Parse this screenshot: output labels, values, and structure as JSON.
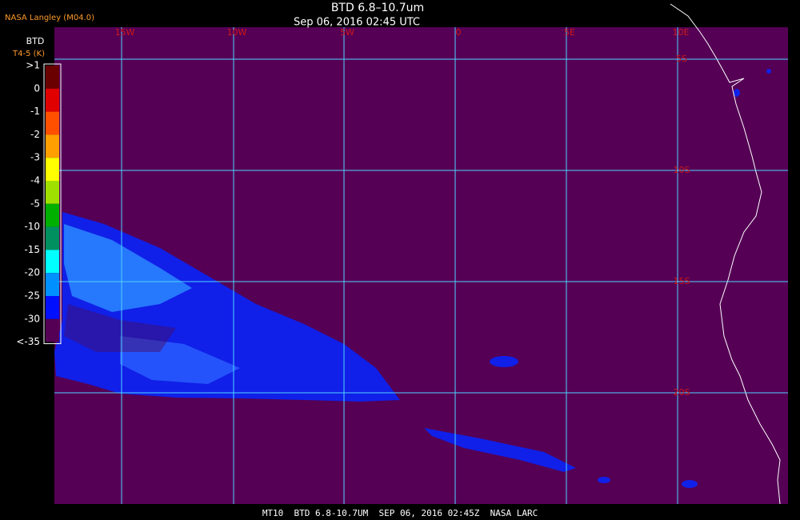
{
  "header": {
    "source": "NASA Langley (M04.0)",
    "title": "BTD 6.8–10.7um",
    "time": "Sep 06, 2016 02:45 UTC"
  },
  "legend": {
    "title": "BTD",
    "unit": "T4-5 (K)",
    "labels": [
      ">1",
      "0",
      "-1",
      "-2",
      "-3",
      "-4",
      "-5",
      "-10",
      "-15",
      "-20",
      "-25",
      "-30",
      "<-35"
    ]
  },
  "map": {
    "longitude_labels": [
      "15W",
      "10W",
      "5W",
      "0",
      "5E",
      "10E"
    ],
    "latitude_labels": [
      "5S",
      "10S",
      "15S",
      "20S"
    ]
  },
  "footer": "MT10  BTD 6.8-10.7UM  SEP 06, 2016 02:45Z  NASA LARC"
}
